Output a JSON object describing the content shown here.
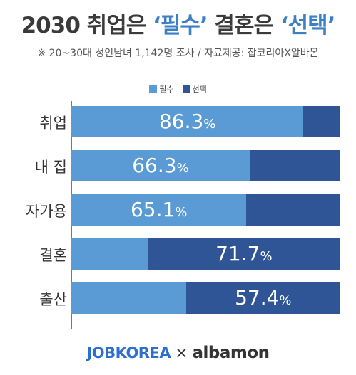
{
  "title": {
    "prefix": "2030 취업은 ",
    "accent1": "‘필수’",
    "middle": " 결혼은 ",
    "accent2": "‘선택’"
  },
  "subtitle": "※ 20~30대 성인남녀 1,142명 조사 / 자료제공: 잡코리아X알바몬",
  "colors": {
    "required": "#5b9bd5",
    "optional": "#2f5597",
    "accent": "#3b7fc4"
  },
  "chart_data": {
    "type": "bar",
    "orientation": "horizontal",
    "stacked": true,
    "categories": [
      "취업",
      "내 집",
      "자가용",
      "결혼",
      "출산"
    ],
    "series": [
      {
        "name": "필수",
        "values": [
          86.3,
          66.3,
          65.1,
          28.3,
          42.6
        ]
      },
      {
        "name": "선택",
        "values": [
          13.7,
          33.7,
          34.9,
          71.7,
          57.4
        ]
      }
    ],
    "labels": [
      {
        "series": "필수",
        "value": "86.3",
        "unit": "%"
      },
      {
        "series": "필수",
        "value": "66.3",
        "unit": "%"
      },
      {
        "series": "필수",
        "value": "65.1",
        "unit": "%"
      },
      {
        "series": "선택",
        "value": "71.7",
        "unit": "%"
      },
      {
        "series": "선택",
        "value": "57.4",
        "unit": "%"
      }
    ],
    "xlim": [
      0,
      100
    ],
    "legend": "top-center",
    "grid": false
  },
  "logos": {
    "left": "JOBKOREA",
    "separator": "×",
    "right": "albamon"
  }
}
